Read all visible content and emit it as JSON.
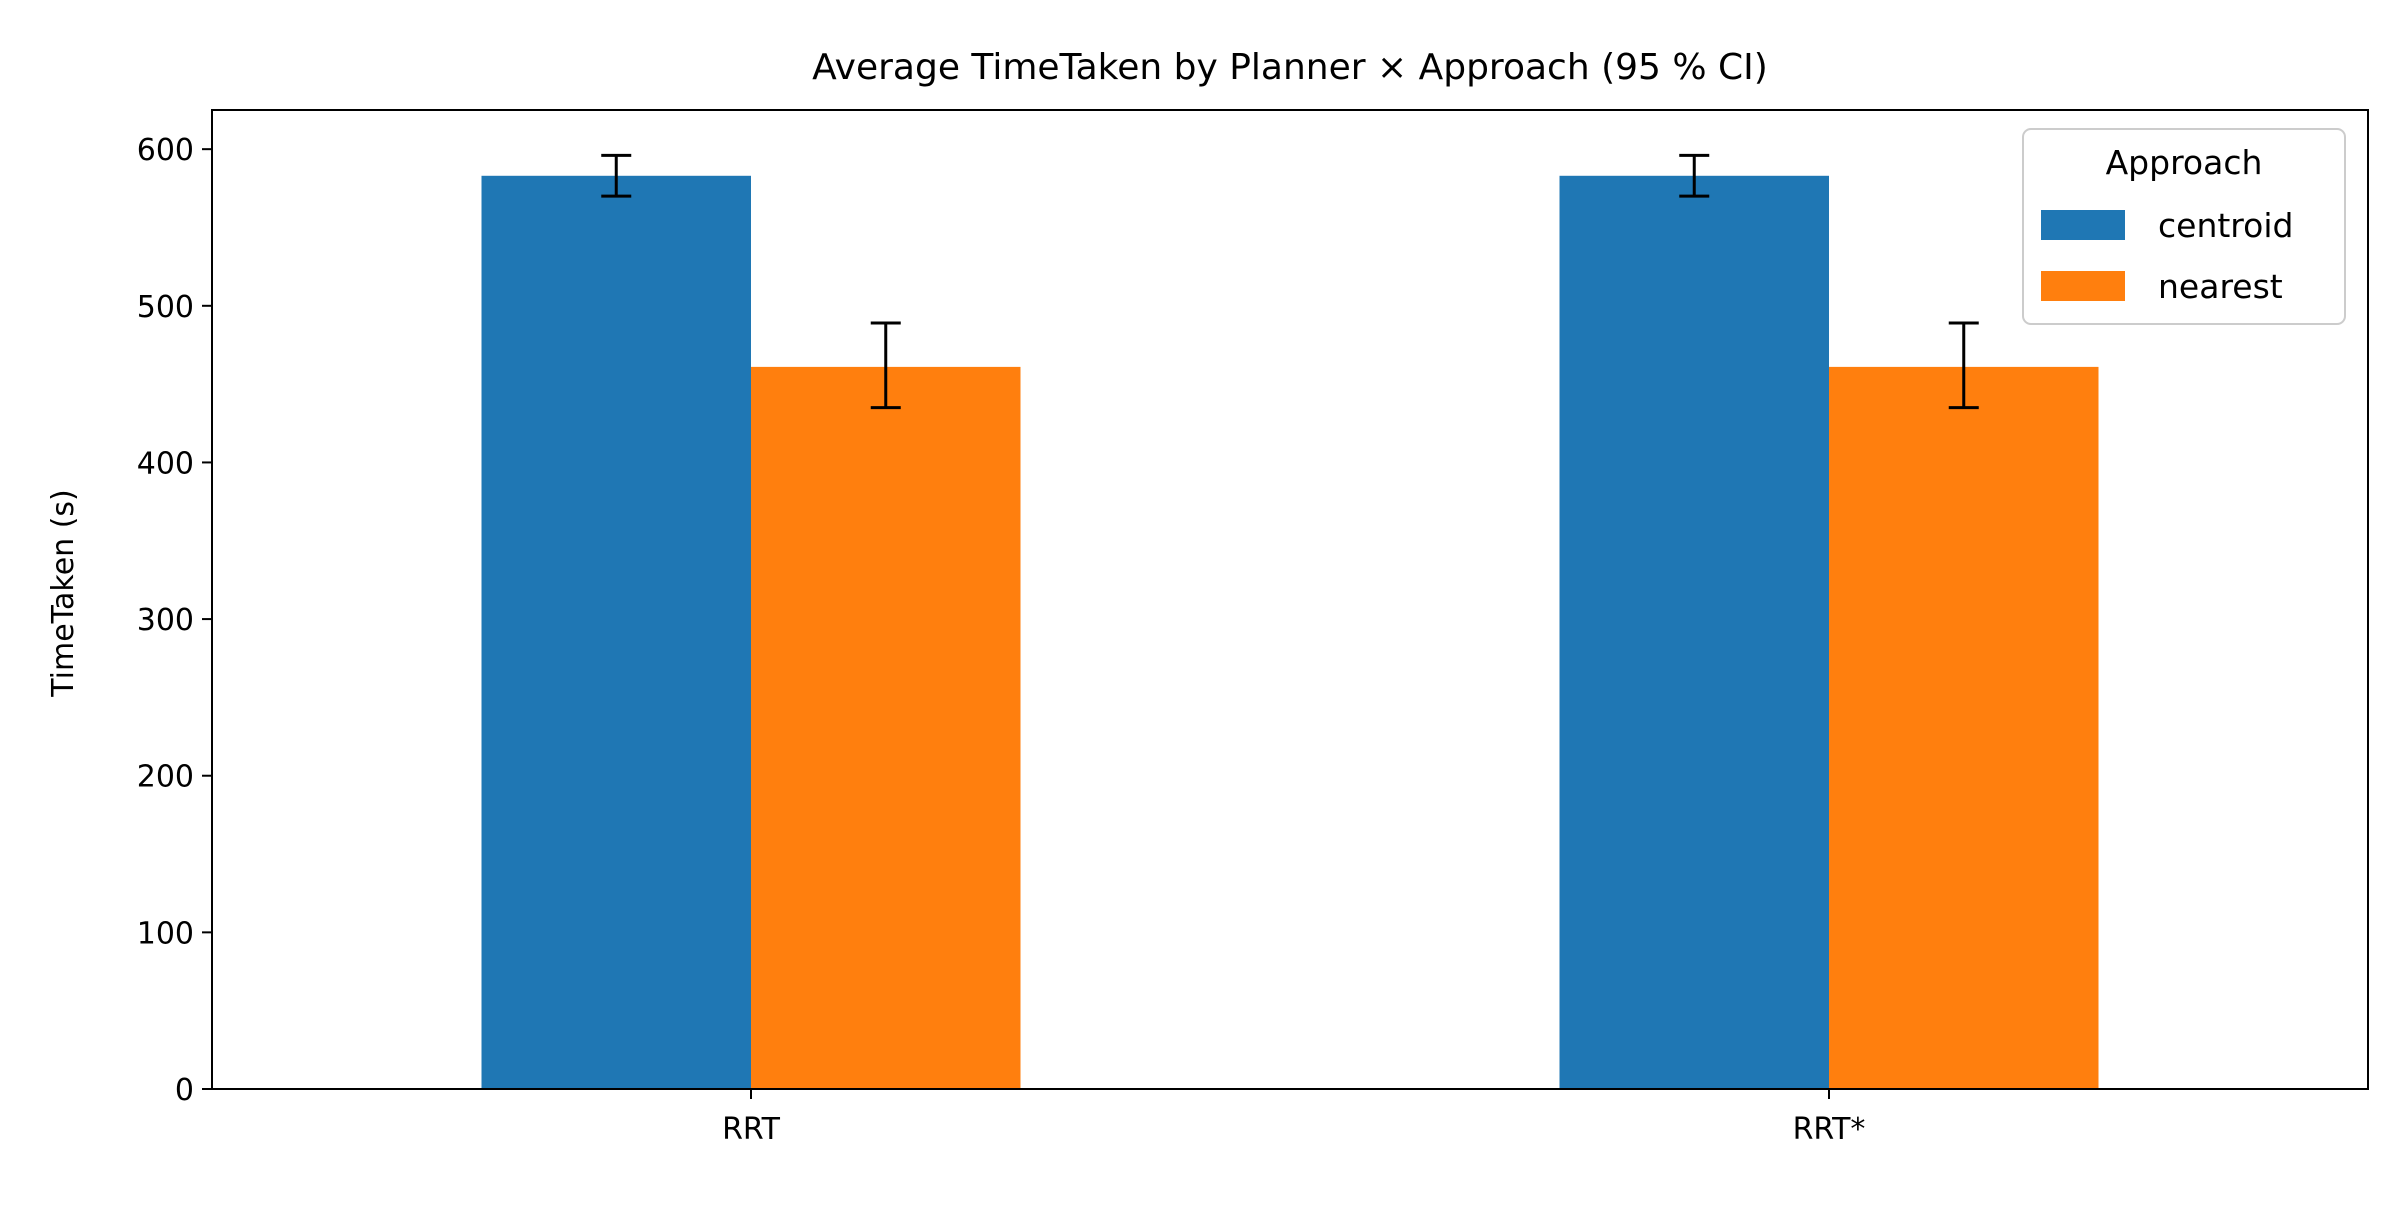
{
  "chart_data": {
    "type": "bar",
    "title": "Average TimeTaken by Planner × Approach (95 % CI)",
    "xlabel": "",
    "ylabel": "TimeTaken (s)",
    "categories": [
      "RRT",
      "RRT*"
    ],
    "ylim": [
      0,
      625
    ],
    "yticks": [
      0,
      100,
      200,
      300,
      400,
      500,
      600
    ],
    "grid": false,
    "legend": {
      "title": "Approach",
      "position": "top-right"
    },
    "series": [
      {
        "name": "centroid",
        "color": "#1f77b4",
        "values": [
          583,
          583
        ],
        "ci_low": [
          570,
          570
        ],
        "ci_high": [
          596,
          596
        ]
      },
      {
        "name": "nearest",
        "color": "#ff7f0e",
        "values": [
          461,
          461
        ],
        "ci_low": [
          435,
          435
        ],
        "ci_high": [
          489,
          489
        ]
      }
    ]
  }
}
